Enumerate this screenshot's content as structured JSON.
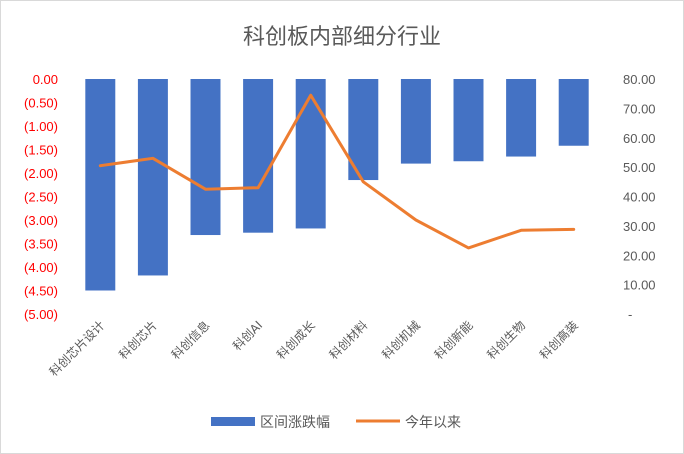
{
  "chart_data": {
    "type": "bar",
    "title": "科创板内部细分行业",
    "categories": [
      "科创芯片设计",
      "科创芯片",
      "科创信息",
      "科创AI",
      "科创成长",
      "科创材料",
      "科创机械",
      "科创新能",
      "科创生物",
      "科创高装"
    ],
    "series": [
      {
        "name": "区间涨跌幅",
        "type": "bar",
        "axis": "left",
        "color": "#4472c4",
        "values": [
          -4.5,
          -4.18,
          -3.32,
          -3.27,
          -3.18,
          -2.15,
          -1.8,
          -1.75,
          -1.65,
          -1.42
        ]
      },
      {
        "name": "今年以来",
        "type": "line",
        "axis": "right",
        "color": "#ed7d31",
        "values": [
          50.5,
          53.0,
          42.5,
          43.0,
          74.5,
          45.0,
          32.0,
          22.5,
          28.5,
          28.8
        ]
      }
    ],
    "y_left": {
      "ylim": [
        -5,
        0
      ],
      "ticks": [
        "0.00",
        "(0.50)",
        "(1.00)",
        "(1.50)",
        "(2.00)",
        "(2.50)",
        "(3.00)",
        "(3.50)",
        "(4.00)",
        "(4.50)",
        "(5.00)"
      ],
      "tick_color": "#ff0000"
    },
    "y_right": {
      "ylim": [
        0,
        80
      ],
      "ticks": [
        "80.00",
        "70.00",
        "60.00",
        "50.00",
        "40.00",
        "30.00",
        "20.00",
        "10.00",
        "-"
      ]
    },
    "legend_position": "bottom",
    "grid": false
  }
}
